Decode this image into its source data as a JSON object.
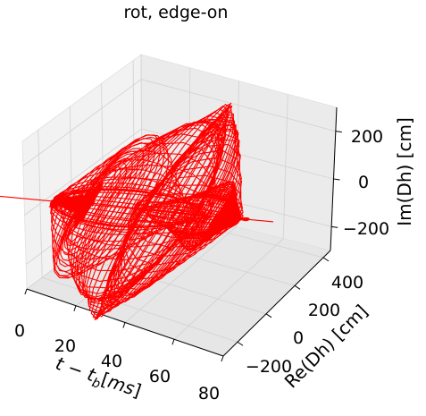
{
  "chart_data": {
    "type": "line",
    "projection": "3d",
    "title": "rot, edge-on",
    "xlabel": "t - t_b [ms]",
    "ylabel": "Re(Dh) [cm]",
    "zlabel": "Im(Dh) [cm]",
    "x_ticks": [
      "0",
      "20",
      "40",
      "60",
      "80"
    ],
    "y_ticks": [
      "−200",
      "0",
      "200",
      "400"
    ],
    "z_ticks": [
      "−200",
      "0",
      "200"
    ],
    "xlim": [
      0,
      80
    ],
    "ylim": [
      -300,
      450
    ],
    "zlim": [
      -300,
      300
    ],
    "grid": true,
    "series": [
      {
        "color": "#ff0000",
        "description": "complex strain-rate trajectory: small amplitude (~30 cm) for t < 10 ms, growing to loops of ~200-400 cm between ~15 and 60 ms, then decaying",
        "x": [
          0,
          5,
          10,
          15,
          20,
          25,
          30,
          35,
          40,
          45,
          50,
          55,
          60,
          65,
          70
        ],
        "amplitude": [
          30,
          25,
          40,
          120,
          250,
          330,
          360,
          340,
          320,
          300,
          260,
          180,
          90,
          40,
          15
        ]
      }
    ]
  }
}
